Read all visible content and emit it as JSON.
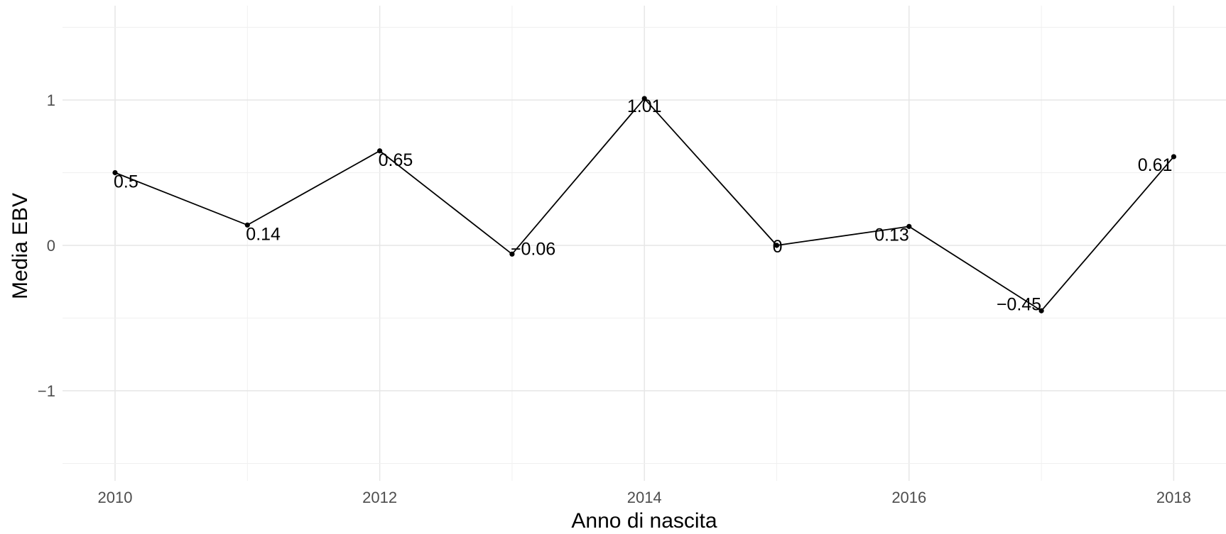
{
  "chart_data": {
    "type": "line",
    "xlabel": "Anno di nascita",
    "ylabel": "Media EBV",
    "x": [
      2010,
      2011,
      2012,
      2013,
      2014,
      2015,
      2016,
      2017,
      2018
    ],
    "values": [
      0.5,
      0.14,
      0.65,
      -0.06,
      1.01,
      0,
      0.13,
      -0.45,
      0.61
    ],
    "data_labels": [
      "0.5",
      "0.14",
      "0.65",
      "−0.06",
      "1.01",
      "0",
      "0.13",
      "−0.45",
      "0.61"
    ],
    "x_ticks": [
      2010,
      2012,
      2014,
      2016,
      2018
    ],
    "x_tick_labels": [
      "2010",
      "2012",
      "2014",
      "2016",
      "2018"
    ],
    "y_ticks": [
      -1,
      0,
      1
    ],
    "y_tick_labels": [
      "−1",
      "0",
      "1"
    ],
    "xlim": [
      2009.6,
      2018.4
    ],
    "ylim": [
      -1.65,
      1.6
    ],
    "grid": true,
    "legend": "none",
    "colors": {
      "line": "#000000",
      "points": "#000000",
      "grid": "#e6e6e6"
    }
  }
}
